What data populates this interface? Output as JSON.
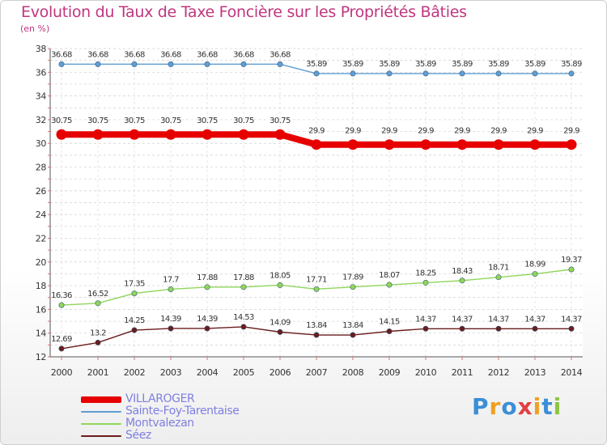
{
  "title": "Evolution du Taux de Taxe Foncière sur les Propriétés Bâties",
  "unit": "(en %)",
  "chart_data": {
    "type": "line",
    "title": "Evolution du Taux de Taxe Foncière sur les Propriétés Bâties",
    "ylabel": "(en %)",
    "xlabel": "",
    "ylim": [
      12,
      38
    ],
    "yticks": [
      "12",
      "14",
      "16",
      "18",
      "20",
      "22",
      "24",
      "26",
      "28",
      "30",
      "32",
      "34",
      "36",
      "38"
    ],
    "categories": [
      "2000",
      "2001",
      "2002",
      "2003",
      "2004",
      "2005",
      "2006",
      "2007",
      "2008",
      "2009",
      "2010",
      "2011",
      "2012",
      "2013",
      "2014"
    ],
    "grid": true,
    "series": [
      {
        "name": "VILLAROGER",
        "color": "#e60000",
        "values": [
          30.75,
          30.75,
          30.75,
          30.75,
          30.75,
          30.75,
          30.75,
          29.9,
          29.9,
          29.9,
          29.9,
          29.9,
          29.9,
          29.9,
          29.9
        ],
        "labels": [
          "30.75",
          "30.75",
          "30.75",
          "30.75",
          "30.75",
          "30.75",
          "30.75",
          "29.9",
          "29.9",
          "29.9",
          "29.9",
          "29.9",
          "29.9",
          "29.9",
          "29.9"
        ]
      },
      {
        "name": "Sainte-Foy-Tarentaise",
        "color": "#5f9ed3",
        "values": [
          36.68,
          36.68,
          36.68,
          36.68,
          36.68,
          36.68,
          36.68,
          35.89,
          35.89,
          35.89,
          35.89,
          35.89,
          35.89,
          35.89,
          35.89
        ],
        "labels": [
          "36.68",
          "36.68",
          "36.68",
          "36.68",
          "36.68",
          "36.68",
          "36.68",
          "35.89",
          "35.89",
          "35.89",
          "35.89",
          "35.89",
          "35.89",
          "35.89",
          "35.89"
        ]
      },
      {
        "name": "Montvalezan",
        "color": "#8fd65a",
        "values": [
          16.36,
          16.52,
          17.35,
          17.7,
          17.88,
          17.88,
          18.05,
          17.71,
          17.89,
          18.07,
          18.25,
          18.43,
          18.71,
          18.99,
          19.37
        ],
        "labels": [
          "16.36",
          "16.52",
          "17.35",
          "17.7",
          "17.88",
          "17.88",
          "18.05",
          "17.71",
          "17.89",
          "18.07",
          "18.25",
          "18.43",
          "18.71",
          "18.99",
          "19.37"
        ]
      },
      {
        "name": "Séez",
        "color": "#6b1c1c",
        "values": [
          12.69,
          13.2,
          14.25,
          14.39,
          14.39,
          14.53,
          14.09,
          13.84,
          13.84,
          14.15,
          14.37,
          14.37,
          14.37,
          14.37,
          14.37
        ],
        "labels": [
          "12.69",
          "13.2",
          "14.25",
          "14.39",
          "14.39",
          "14.53",
          "14.09",
          "13.84",
          "13.84",
          "14.15",
          "14.37",
          "14.37",
          "14.37",
          "14.37",
          "14.37"
        ]
      }
    ],
    "legend_position": "bottom-left"
  },
  "legend": [
    {
      "label": "VILLAROGER",
      "color": "#e60000"
    },
    {
      "label": "Sainte-Foy-Tarentaise",
      "color": "#5f9ed3"
    },
    {
      "label": "Montvalezan",
      "color": "#8fd65a"
    },
    {
      "label": "Séez",
      "color": "#6b1c1c"
    }
  ],
  "logo": {
    "letters": [
      "P",
      "r",
      "o",
      "x",
      "i",
      "t",
      "i"
    ],
    "colors": [
      "#3a8fd6",
      "#f0a020",
      "#3a8fd6",
      "#e04040",
      "#f0a020",
      "#3a8fd6",
      "#8cc63f"
    ]
  }
}
